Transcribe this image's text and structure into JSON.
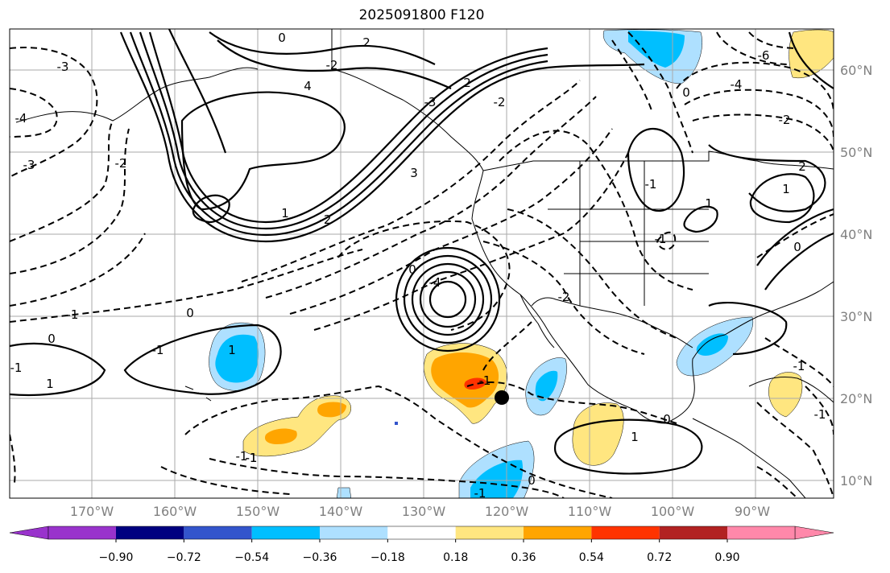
{
  "map": {
    "title": "2025091800 F120",
    "lon_labels": [
      "170°W",
      "160°W",
      "150°W",
      "140°W",
      "130°W",
      "120°W",
      "110°W",
      "100°W",
      "90°W"
    ],
    "lat_labels": [
      "60°N",
      "50°N",
      "40°N",
      "30°N",
      "20°N",
      "10°N"
    ],
    "contour_labels": [
      {
        "text": "0"
      },
      {
        "text": "2"
      },
      {
        "text": "4"
      },
      {
        "text": "2"
      },
      {
        "text": "1"
      },
      {
        "text": "3"
      },
      {
        "text": "-4"
      },
      {
        "text": "-3"
      },
      {
        "text": "-2"
      },
      {
        "text": "-2"
      },
      {
        "text": "-2"
      },
      {
        "text": "-3"
      },
      {
        "text": "-1"
      },
      {
        "text": "-1"
      },
      {
        "text": "0"
      },
      {
        "text": "0"
      },
      {
        "text": "-2"
      },
      {
        "text": "-3"
      },
      {
        "text": "-4"
      },
      {
        "text": "1"
      },
      {
        "text": "1"
      },
      {
        "text": "-1"
      },
      {
        "text": "0"
      },
      {
        "text": "-1"
      },
      {
        "text": "-1"
      },
      {
        "text": "-1"
      },
      {
        "text": "1"
      },
      {
        "text": "-2"
      },
      {
        "text": "-6"
      },
      {
        "text": "-4"
      },
      {
        "text": "-2"
      },
      {
        "text": "0"
      },
      {
        "text": "2"
      },
      {
        "text": "-1"
      },
      {
        "text": "1"
      },
      {
        "text": "-1"
      },
      {
        "text": "0"
      },
      {
        "text": "-1"
      },
      {
        "text": "1"
      },
      {
        "text": "-1"
      },
      {
        "text": "0"
      },
      {
        "text": "-1"
      },
      {
        "text": "-1"
      },
      {
        "text": "0"
      }
    ],
    "marker": {
      "lon": -120,
      "lat": 20
    }
  },
  "colorbar": {
    "tick_labels": [
      "−0.90",
      "−0.72",
      "−0.54",
      "−0.36",
      "−0.18",
      "0.18",
      "0.36",
      "0.54",
      "0.72",
      "0.90"
    ],
    "colors": [
      "#9933cc",
      "#000080",
      "#3355cc",
      "#00bfff",
      "#aee0ff",
      "#ffffff",
      "#ffe680",
      "#ffa500",
      "#ff3300",
      "#b22222",
      "#ff88aa"
    ]
  }
}
